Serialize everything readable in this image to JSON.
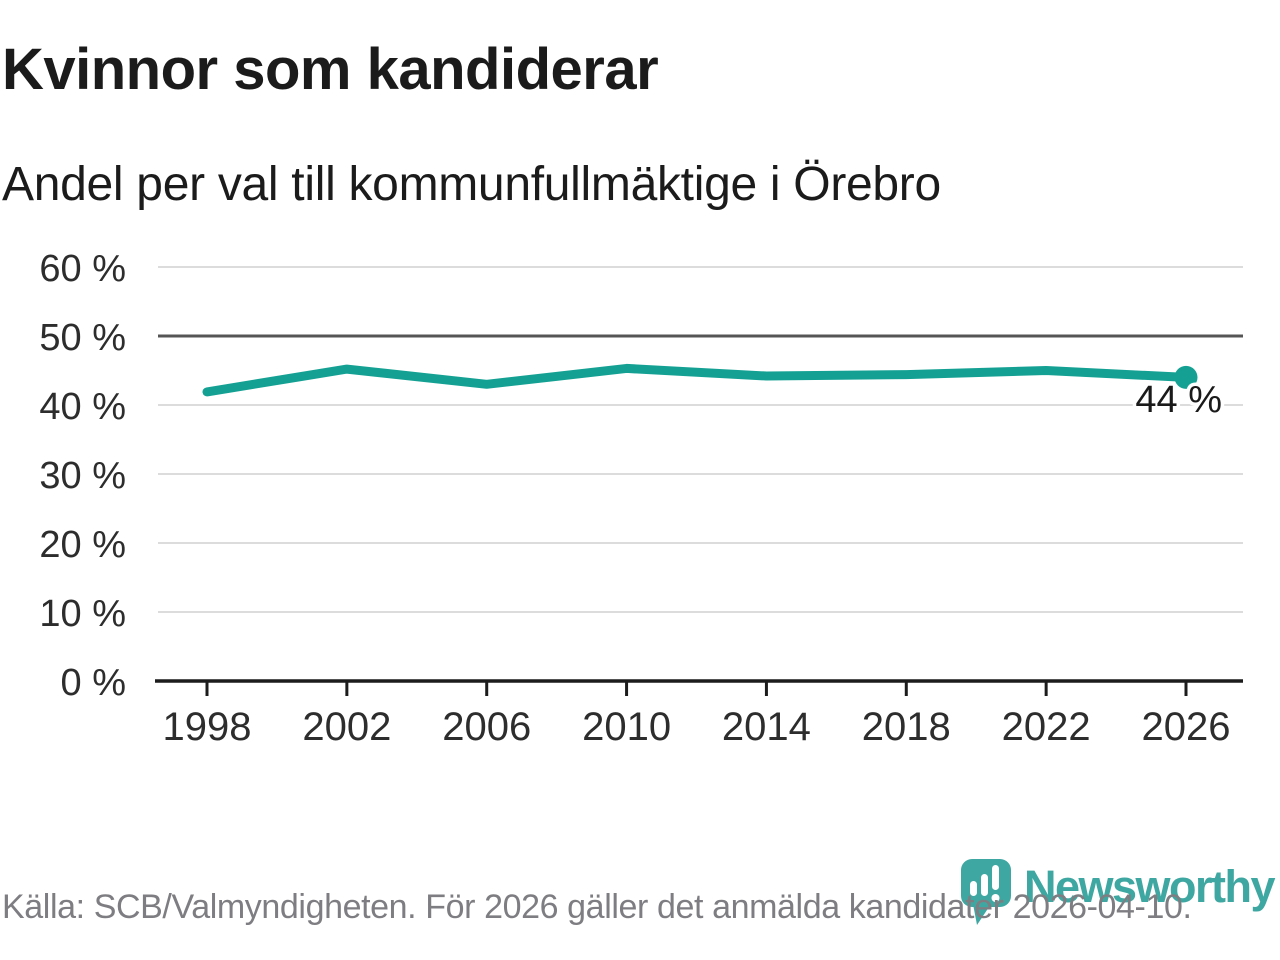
{
  "header": {
    "title": "Kvinnor som kandiderar",
    "subtitle": "Andel per val till kommunfullmäktige i Örebro"
  },
  "chart_data": {
    "type": "line",
    "title": "Kvinnor som kandiderar",
    "subtitle": "Andel per val till kommunfullmäktige i Örebro",
    "x": [
      1998,
      2002,
      2006,
      2010,
      2014,
      2018,
      2022,
      2026
    ],
    "series": [
      {
        "values": [
          41.9,
          45.2,
          43.0,
          45.3,
          44.2,
          44.4,
          45.0,
          44.0
        ],
        "color": "#14A193"
      }
    ],
    "xlabel": "",
    "ylabel": "",
    "ylim": [
      0,
      60
    ],
    "yticks": [
      0,
      10,
      20,
      30,
      40,
      50,
      60
    ],
    "ytick_suffix": " %",
    "reference_line_y": 50,
    "end_label": "44 %",
    "grid": true,
    "legend": "none"
  },
  "footer": {
    "source": "Källa: SCB/Valmyndigheten. För 2026 gäller det anmälda kandidater 2026-04-10."
  },
  "logo": {
    "brand": "Newsworthy"
  },
  "colors": {
    "line": "#14A193",
    "grid": "#DCDCDC",
    "reference_line": "#555555",
    "axis": "#1C1C1C",
    "tick_label": "#2D2D2D",
    "end_label_text": "#1A1A1A",
    "title_text": "#1B1B1B",
    "source_text": "#7E7E82",
    "brand": "#3FA7A1"
  }
}
